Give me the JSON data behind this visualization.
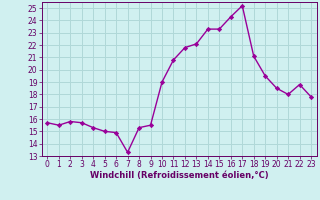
{
  "x": [
    0,
    1,
    2,
    3,
    4,
    5,
    6,
    7,
    8,
    9,
    10,
    11,
    12,
    13,
    14,
    15,
    16,
    17,
    18,
    19,
    20,
    21,
    22,
    23
  ],
  "y": [
    15.7,
    15.5,
    15.8,
    15.7,
    15.3,
    15.0,
    14.9,
    13.3,
    15.3,
    15.5,
    19.0,
    20.8,
    21.8,
    22.1,
    23.3,
    23.3,
    24.3,
    25.2,
    21.1,
    19.5,
    18.5,
    18.0,
    18.8,
    17.8
  ],
  "line_color": "#990099",
  "marker": "D",
  "markersize": 2.2,
  "linewidth": 1.0,
  "xlim": [
    -0.5,
    23.5
  ],
  "ylim": [
    13,
    25.5
  ],
  "yticks": [
    13,
    14,
    15,
    16,
    17,
    18,
    19,
    20,
    21,
    22,
    23,
    24,
    25
  ],
  "xticks": [
    0,
    1,
    2,
    3,
    4,
    5,
    6,
    7,
    8,
    9,
    10,
    11,
    12,
    13,
    14,
    15,
    16,
    17,
    18,
    19,
    20,
    21,
    22,
    23
  ],
  "xlabel": "Windchill (Refroidissement éolien,°C)",
  "background_color": "#d0f0f0",
  "grid_color": "#b0d8d8",
  "line_spine_color": "#660066",
  "tick_color": "#660066",
  "label_color": "#660066",
  "tick_fontsize": 5.5,
  "xlabel_fontsize": 6.0
}
